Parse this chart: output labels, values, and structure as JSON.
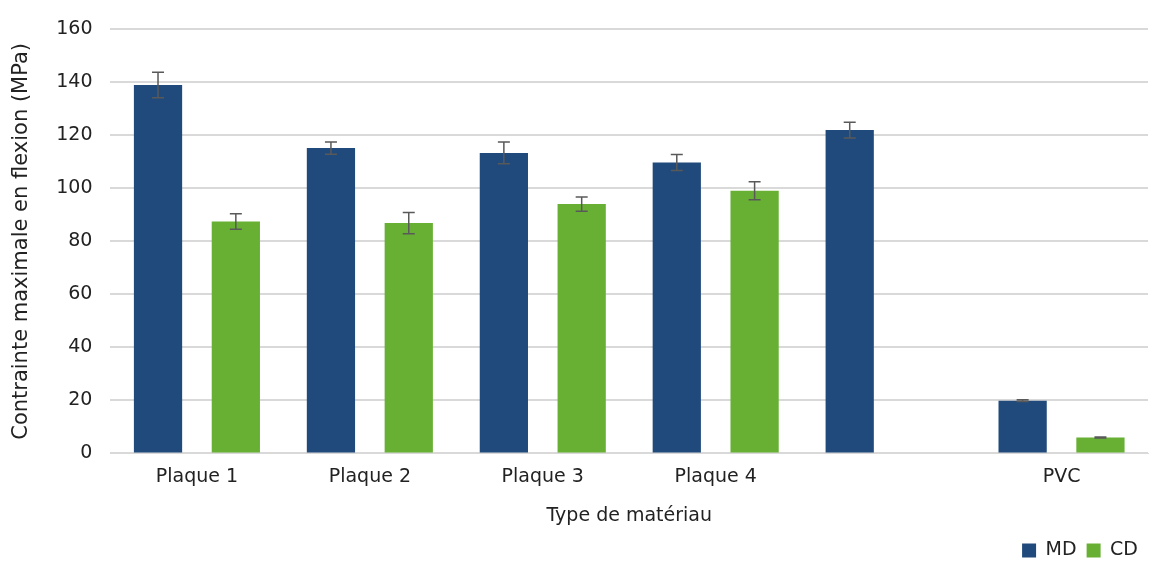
{
  "chart_data": {
    "type": "bar",
    "xlabel": "Type de matériau",
    "ylabel": "Contrainte maximale en flexion (MPa)",
    "categories": [
      "Plaque 1",
      "Plaque 2",
      "Plaque 3",
      "Plaque 4",
      null,
      "PVC"
    ],
    "series": [
      {
        "name": "MD",
        "color": "#204a7b",
        "values": [
          139,
          115.2,
          113.4,
          109.8,
          122,
          19.9
        ],
        "errors": [
          4.8,
          2.3,
          4.1,
          3,
          3,
          0.3
        ]
      },
      {
        "name": "CD",
        "color": "#67b034",
        "values": [
          87.5,
          86.9,
          94.1,
          99.1,
          null,
          6
        ],
        "errors": [
          2.9,
          4,
          2.7,
          3.4,
          null,
          0.2
        ]
      }
    ],
    "ylim": [
      0,
      160
    ],
    "yticks": [
      0,
      20,
      40,
      60,
      80,
      100,
      120,
      140,
      160
    ],
    "grid": "y",
    "legend": "bottom right"
  }
}
